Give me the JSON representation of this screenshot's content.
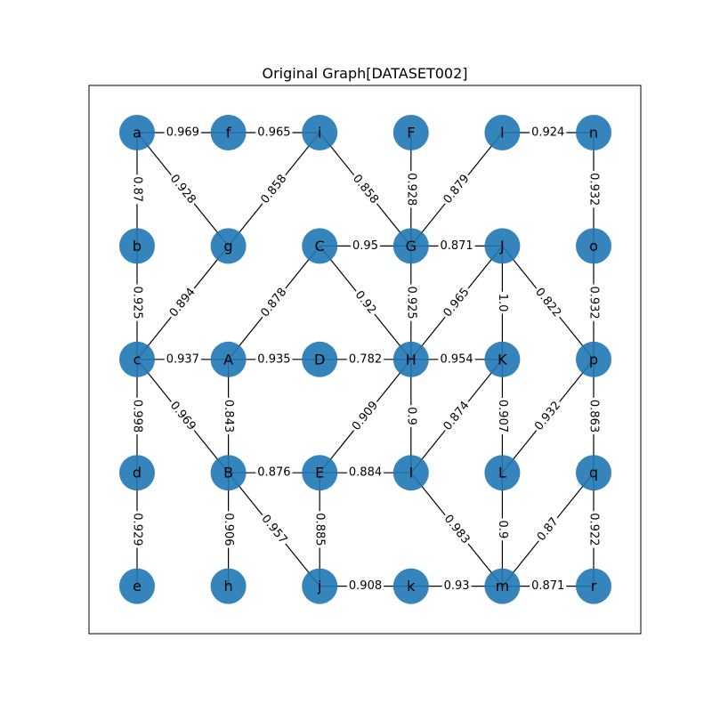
{
  "title": "Original Graph[DATASET002]",
  "colors": {
    "node": "#1f77b4",
    "edge": "#000000",
    "frame": "#000000"
  },
  "graph": {
    "grid_columns": 6,
    "grid_rows": 5,
    "nodes": [
      {
        "id": "a",
        "col": 0,
        "row": 0
      },
      {
        "id": "f",
        "col": 1,
        "row": 0
      },
      {
        "id": "i",
        "col": 2,
        "row": 0
      },
      {
        "id": "F",
        "col": 3,
        "row": 0
      },
      {
        "id": "l",
        "col": 4,
        "row": 0
      },
      {
        "id": "n",
        "col": 5,
        "row": 0
      },
      {
        "id": "b",
        "col": 0,
        "row": 1
      },
      {
        "id": "g",
        "col": 1,
        "row": 1
      },
      {
        "id": "C",
        "col": 2,
        "row": 1
      },
      {
        "id": "G",
        "col": 3,
        "row": 1
      },
      {
        "id": "J",
        "col": 4,
        "row": 1
      },
      {
        "id": "o",
        "col": 5,
        "row": 1
      },
      {
        "id": "c",
        "col": 0,
        "row": 2
      },
      {
        "id": "A",
        "col": 1,
        "row": 2
      },
      {
        "id": "D",
        "col": 2,
        "row": 2
      },
      {
        "id": "H",
        "col": 3,
        "row": 2
      },
      {
        "id": "K",
        "col": 4,
        "row": 2
      },
      {
        "id": "p",
        "col": 5,
        "row": 2
      },
      {
        "id": "d",
        "col": 0,
        "row": 3
      },
      {
        "id": "B",
        "col": 1,
        "row": 3
      },
      {
        "id": "E",
        "col": 2,
        "row": 3
      },
      {
        "id": "I",
        "col": 3,
        "row": 3
      },
      {
        "id": "L",
        "col": 4,
        "row": 3
      },
      {
        "id": "q",
        "col": 5,
        "row": 3
      },
      {
        "id": "e",
        "col": 0,
        "row": 4
      },
      {
        "id": "h",
        "col": 1,
        "row": 4
      },
      {
        "id": "j",
        "col": 2,
        "row": 4
      },
      {
        "id": "k",
        "col": 3,
        "row": 4
      },
      {
        "id": "m",
        "col": 4,
        "row": 4
      },
      {
        "id": "r",
        "col": 5,
        "row": 4
      }
    ],
    "edges": [
      {
        "from": "a",
        "to": "f",
        "weight": "0.969"
      },
      {
        "from": "f",
        "to": "i",
        "weight": "0.965"
      },
      {
        "from": "l",
        "to": "n",
        "weight": "0.924"
      },
      {
        "from": "a",
        "to": "b",
        "weight": "0.87"
      },
      {
        "from": "a",
        "to": "g",
        "weight": "0.928"
      },
      {
        "from": "i",
        "to": "g",
        "weight": "0.858"
      },
      {
        "from": "i",
        "to": "G",
        "weight": "0.858"
      },
      {
        "from": "F",
        "to": "G",
        "weight": "0.928"
      },
      {
        "from": "l",
        "to": "G",
        "weight": "0.879"
      },
      {
        "from": "n",
        "to": "o",
        "weight": "0.932"
      },
      {
        "from": "C",
        "to": "G",
        "weight": "0.95"
      },
      {
        "from": "G",
        "to": "J",
        "weight": "0.871"
      },
      {
        "from": "b",
        "to": "c",
        "weight": "0.925"
      },
      {
        "from": "g",
        "to": "c",
        "weight": "0.894"
      },
      {
        "from": "C",
        "to": "A",
        "weight": "0.878"
      },
      {
        "from": "C",
        "to": "H",
        "weight": "0.92"
      },
      {
        "from": "G",
        "to": "H",
        "weight": "0.925"
      },
      {
        "from": "J",
        "to": "H",
        "weight": "0.965"
      },
      {
        "from": "J",
        "to": "K",
        "weight": "1.0"
      },
      {
        "from": "J",
        "to": "p",
        "weight": "0.822"
      },
      {
        "from": "o",
        "to": "p",
        "weight": "0.932"
      },
      {
        "from": "c",
        "to": "A",
        "weight": "0.937"
      },
      {
        "from": "A",
        "to": "D",
        "weight": "0.935"
      },
      {
        "from": "D",
        "to": "H",
        "weight": "0.782"
      },
      {
        "from": "H",
        "to": "K",
        "weight": "0.954"
      },
      {
        "from": "c",
        "to": "d",
        "weight": "0.998"
      },
      {
        "from": "c",
        "to": "B",
        "weight": "0.969"
      },
      {
        "from": "A",
        "to": "B",
        "weight": "0.843"
      },
      {
        "from": "H",
        "to": "E",
        "weight": "0.909"
      },
      {
        "from": "H",
        "to": "I",
        "weight": "0.9"
      },
      {
        "from": "K",
        "to": "I",
        "weight": "0.874"
      },
      {
        "from": "K",
        "to": "L",
        "weight": "0.907"
      },
      {
        "from": "p",
        "to": "L",
        "weight": "0.932"
      },
      {
        "from": "p",
        "to": "q",
        "weight": "0.863"
      },
      {
        "from": "B",
        "to": "E",
        "weight": "0.876"
      },
      {
        "from": "E",
        "to": "I",
        "weight": "0.884"
      },
      {
        "from": "d",
        "to": "e",
        "weight": "0.929"
      },
      {
        "from": "B",
        "to": "h",
        "weight": "0.906"
      },
      {
        "from": "B",
        "to": "j",
        "weight": "0.957"
      },
      {
        "from": "E",
        "to": "j",
        "weight": "0.885"
      },
      {
        "from": "I",
        "to": "m",
        "weight": "0.983"
      },
      {
        "from": "L",
        "to": "m",
        "weight": "0.9"
      },
      {
        "from": "q",
        "to": "m",
        "weight": "0.87"
      },
      {
        "from": "q",
        "to": "r",
        "weight": "0.922"
      },
      {
        "from": "j",
        "to": "k",
        "weight": "0.908"
      },
      {
        "from": "k",
        "to": "m",
        "weight": "0.93"
      },
      {
        "from": "m",
        "to": "r",
        "weight": "0.871"
      }
    ]
  }
}
